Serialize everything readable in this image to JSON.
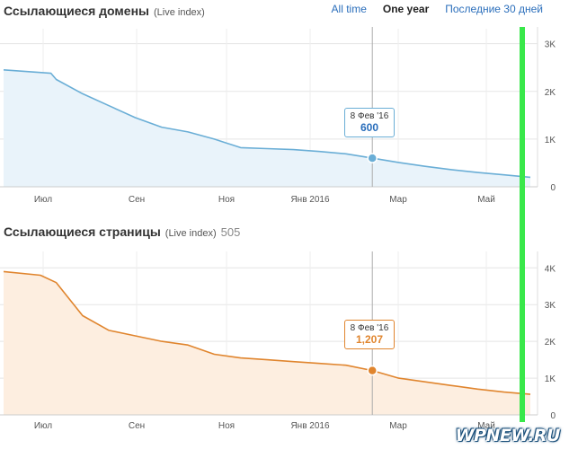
{
  "range_tabs": [
    {
      "label": "All time",
      "active": false
    },
    {
      "label": "One year",
      "active": true
    },
    {
      "label": "Последние 30 дней",
      "active": false
    }
  ],
  "chart_data": [
    {
      "type": "area",
      "title": "Ссылающиеся домены",
      "subtitle": "(Live index)",
      "count": "",
      "color": "#6aaed6",
      "fill": "#e9f3fa",
      "x_ticks": [
        "Июл",
        "Сен",
        "Ноя",
        "Янв 2016",
        "Мар",
        "Май"
      ],
      "y_ticks": [
        "0",
        "1K",
        "2K",
        "3K"
      ],
      "ylim": [
        0,
        3200
      ],
      "x": [
        0,
        0.09,
        0.1,
        0.15,
        0.2,
        0.25,
        0.3,
        0.35,
        0.4,
        0.45,
        0.5,
        0.55,
        0.6,
        0.65,
        0.7,
        0.75,
        0.8,
        0.85,
        0.9,
        0.95,
        1.0
      ],
      "values": [
        2450,
        2380,
        2250,
        1950,
        1700,
        1450,
        1250,
        1150,
        1000,
        820,
        800,
        780,
        740,
        690,
        600,
        510,
        430,
        360,
        300,
        250,
        200
      ],
      "tooltip": {
        "date": "8 Фев '16",
        "value": "600",
        "x": 0.7
      }
    },
    {
      "type": "area",
      "title": "Ссылающиеся страницы",
      "subtitle": "(Live index)",
      "count": "505",
      "color": "#e0852e",
      "fill": "#fdeee0",
      "x_ticks": [
        "Июл",
        "Сен",
        "Ноя",
        "Янв 2016",
        "Мар",
        "Май"
      ],
      "y_ticks": [
        "0",
        "1K",
        "2K",
        "3K",
        "4K"
      ],
      "ylim": [
        0,
        4300
      ],
      "x": [
        0,
        0.07,
        0.1,
        0.15,
        0.2,
        0.25,
        0.3,
        0.35,
        0.4,
        0.45,
        0.5,
        0.55,
        0.6,
        0.65,
        0.7,
        0.75,
        0.8,
        0.85,
        0.9,
        0.95,
        1.0
      ],
      "values": [
        3900,
        3800,
        3600,
        2700,
        2300,
        2150,
        2000,
        1900,
        1650,
        1550,
        1500,
        1450,
        1400,
        1350,
        1207,
        1000,
        900,
        800,
        700,
        620,
        560
      ],
      "tooltip": {
        "date": "8 Фев '16",
        "value": "1,207",
        "x": 0.7
      }
    }
  ],
  "watermark": "WPNEW.RU"
}
